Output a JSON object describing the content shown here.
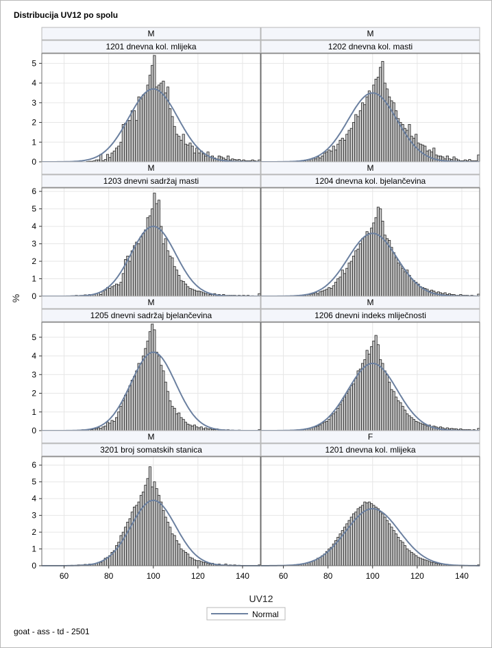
{
  "title": "Distribucija UV12 po spolu",
  "footnote": "goat - ass - td - 2501",
  "legend": {
    "label": "Normal",
    "placement": "bottom-center"
  },
  "chart_data": {
    "type": "bar",
    "subtype": "histogram-panel-grid",
    "xlabel": "UV12",
    "ylabel": "%",
    "xlim": [
      50,
      148
    ],
    "xticks": [
      60,
      80,
      100,
      120,
      140
    ],
    "bin_width": 1,
    "grid": true,
    "curve_color": "#6b80a0",
    "bar_fill": "#c8c8c8",
    "bar_edge": "#202020",
    "rows": [
      {
        "ylim": [
          0,
          5.5
        ],
        "yticks": [
          0,
          1,
          2,
          3,
          4,
          5
        ]
      },
      {
        "ylim": [
          0,
          6.2
        ],
        "yticks": [
          0,
          1,
          2,
          3,
          4,
          5,
          6
        ]
      },
      {
        "ylim": [
          0,
          5.8
        ],
        "yticks": [
          0,
          1,
          2,
          3,
          4,
          5
        ]
      },
      {
        "ylim": [
          0,
          6.5
        ],
        "yticks": [
          0,
          1,
          2,
          3,
          4,
          5,
          6
        ]
      }
    ],
    "panels": [
      {
        "sex": "M",
        "trait": "1201 dnevna kol. mlijeka",
        "normal_peak": 3.7,
        "normal_sd": 11,
        "hist_peak": 5.4,
        "bins": {
          "start": 70,
          "end": 147,
          "values": [
            0.02,
            0.03,
            0.03,
            0.05,
            0.1,
            0.1,
            0.38,
            0.05,
            0.12,
            0.38,
            0.22,
            0.45,
            0.55,
            0.7,
            0.8,
            1.0,
            1.9,
            1.95,
            2.1,
            2.1,
            2.6,
            2.6,
            2.1,
            3.3,
            3.2,
            3.4,
            3.5,
            3.9,
            4.4,
            4.9,
            5.4,
            3.8,
            3.9,
            4.0,
            4.1,
            3.5,
            3.8,
            2.7,
            2.3,
            1.8,
            1.4,
            1.3,
            1.1,
            1.4,
            0.9,
            0.85,
            0.95,
            0.8,
            0.45,
            0.7,
            0.45,
            0.55,
            0.4,
            0.3,
            0.5,
            0.25,
            0.3,
            0.2,
            0.15,
            0.3,
            0.25,
            0.2,
            0.12,
            0.3,
            0.1,
            0.15,
            0.12,
            0.1,
            0.12,
            0.05,
            0.1,
            0.05,
            0.05,
            0.05,
            0.1,
            0.05,
            0.03,
            0.1
          ]
        }
      },
      {
        "sex": "M",
        "trait": "1202 dnevna kol. masti",
        "normal_peak": 3.5,
        "normal_sd": 11,
        "hist_peak": 5.1,
        "bins": {
          "start": 62,
          "end": 147,
          "values": [
            0.02,
            0.03,
            0.02,
            0.03,
            0.05,
            0.05,
            0.05,
            0.05,
            0.1,
            0.12,
            0.15,
            0.2,
            0.15,
            0.25,
            0.2,
            0.3,
            0.45,
            0.5,
            0.6,
            0.55,
            0.8,
            0.6,
            0.9,
            1.1,
            1.2,
            1.1,
            1.4,
            1.6,
            1.7,
            2.0,
            2.4,
            2.3,
            2.6,
            3.0,
            2.9,
            3.3,
            3.6,
            3.5,
            3.9,
            4.2,
            4.3,
            4.8,
            5.1,
            4.0,
            3.7,
            3.3,
            3.1,
            3.0,
            2.6,
            2.2,
            2.0,
            1.9,
            1.7,
            1.6,
            1.9,
            1.3,
            1.2,
            1.4,
            0.95,
            0.9,
            0.85,
            0.8,
            0.55,
            0.6,
            0.5,
            0.7,
            0.35,
            0.3,
            0.3,
            0.25,
            0.15,
            0.3,
            0.15,
            0.12,
            0.25,
            0.15,
            0.1,
            0.05,
            0.05,
            0.1,
            0.05,
            0.12,
            0.05,
            0.05,
            0.05,
            0.35
          ]
        }
      },
      {
        "sex": "M",
        "trait": "1203 dnevni sadržaj masti",
        "normal_peak": 4.0,
        "normal_sd": 10,
        "hist_peak": 5.9,
        "bins": {
          "start": 62,
          "end": 147,
          "values": [
            0.02,
            0.03,
            0.03,
            0.05,
            0.03,
            0.05,
            0.05,
            0.08,
            0.05,
            0.1,
            0.1,
            0.12,
            0.15,
            0.2,
            0.1,
            0.3,
            0.35,
            0.5,
            0.45,
            0.55,
            0.6,
            0.7,
            0.65,
            0.8,
            1.3,
            2.1,
            2.3,
            2.0,
            2.6,
            2.9,
            3.1,
            3.0,
            3.4,
            3.6,
            3.8,
            4.5,
            4.6,
            5.0,
            5.9,
            5.3,
            5.5,
            4.0,
            3.0,
            3.3,
            2.6,
            2.3,
            2.2,
            1.7,
            1.5,
            1.2,
            0.9,
            0.85,
            0.7,
            0.55,
            0.45,
            0.4,
            0.35,
            0.3,
            0.3,
            0.25,
            0.2,
            0.15,
            0.2,
            0.1,
            0.1,
            0.15,
            0.05,
            0.1,
            0.05,
            0.1,
            0.05,
            0.05,
            0.05,
            0.05,
            0.05,
            0.03,
            0.05,
            0.03,
            0.05,
            0.03,
            0.05,
            0.02,
            0.03,
            0.02,
            0.02,
            0.15
          ]
        }
      },
      {
        "sex": "M",
        "trait": "1204 dnevna kol. bjelančevina",
        "normal_peak": 3.6,
        "normal_sd": 11,
        "hist_peak": 5.1,
        "bins": {
          "start": 62,
          "end": 147,
          "values": [
            0.02,
            0.03,
            0.02,
            0.03,
            0.05,
            0.05,
            0.05,
            0.05,
            0.1,
            0.1,
            0.12,
            0.15,
            0.2,
            0.15,
            0.25,
            0.3,
            0.35,
            0.4,
            0.5,
            0.45,
            0.6,
            0.8,
            1.0,
            1.1,
            1.5,
            1.3,
            1.6,
            1.9,
            2.0,
            2.3,
            2.6,
            2.7,
            3.0,
            3.3,
            3.4,
            3.7,
            3.6,
            3.9,
            4.2,
            4.5,
            5.1,
            5.0,
            4.3,
            3.5,
            3.3,
            3.2,
            2.8,
            2.5,
            2.2,
            1.9,
            1.8,
            1.6,
            1.4,
            1.5,
            1.2,
            1.0,
            0.9,
            0.8,
            0.7,
            0.55,
            0.5,
            0.45,
            0.4,
            0.3,
            0.35,
            0.3,
            0.2,
            0.25,
            0.2,
            0.15,
            0.2,
            0.1,
            0.15,
            0.1,
            0.1,
            0.05,
            0.05,
            0.1,
            0.05,
            0.05,
            0.05,
            0.03,
            0.05,
            0.03,
            0.02,
            0.12
          ]
        }
      },
      {
        "sex": "M",
        "trait": "1205 dnevni sadržaj bjelančevina",
        "normal_peak": 4.2,
        "normal_sd": 10,
        "hist_peak": 5.7,
        "bins": {
          "start": 65,
          "end": 147,
          "values": [
            0.02,
            0.03,
            0.02,
            0.05,
            0.03,
            0.05,
            0.08,
            0.05,
            0.1,
            0.1,
            0.15,
            0.12,
            0.2,
            0.25,
            0.45,
            0.4,
            0.55,
            0.5,
            0.7,
            1.0,
            1.3,
            1.6,
            1.9,
            2.1,
            2.4,
            2.7,
            2.9,
            3.2,
            3.6,
            3.6,
            4.0,
            4.4,
            4.8,
            5.3,
            5.7,
            5.4,
            4.2,
            4.0,
            3.5,
            3.2,
            2.6,
            2.1,
            1.6,
            1.3,
            1.2,
            0.9,
            0.95,
            0.7,
            0.6,
            0.45,
            0.35,
            0.3,
            0.25,
            0.3,
            0.2,
            0.15,
            0.2,
            0.1,
            0.15,
            0.1,
            0.1,
            0.05,
            0.05,
            0.1,
            0.05,
            0.03,
            0.05,
            0.03,
            0.05,
            0.02,
            0.03,
            0.02,
            0.02,
            0.03,
            0.02,
            0.02,
            0.02,
            0.02,
            0.02,
            0.02,
            0.02,
            0.02,
            0.05
          ]
        }
      },
      {
        "sex": "M",
        "trait": "1206 dnevni indeks mliječnosti",
        "normal_peak": 3.6,
        "normal_sd": 11,
        "hist_peak": 5.1,
        "bins": {
          "start": 62,
          "end": 147,
          "values": [
            0.02,
            0.03,
            0.02,
            0.03,
            0.05,
            0.05,
            0.05,
            0.08,
            0.1,
            0.12,
            0.15,
            0.2,
            0.2,
            0.25,
            0.3,
            0.4,
            0.45,
            0.5,
            0.6,
            0.8,
            0.9,
            1.0,
            1.2,
            1.4,
            1.6,
            1.8,
            2.0,
            2.2,
            2.4,
            2.5,
            2.8,
            3.2,
            3.3,
            3.6,
            3.8,
            4.3,
            4.1,
            4.5,
            4.8,
            5.1,
            4.6,
            3.8,
            3.6,
            3.2,
            3.0,
            2.6,
            2.2,
            2.1,
            1.8,
            1.6,
            1.5,
            1.3,
            1.1,
            0.9,
            0.8,
            0.7,
            0.6,
            0.5,
            0.45,
            0.4,
            0.35,
            0.3,
            0.25,
            0.3,
            0.2,
            0.25,
            0.2,
            0.15,
            0.2,
            0.15,
            0.1,
            0.15,
            0.1,
            0.12,
            0.1,
            0.1,
            0.05,
            0.1,
            0.05,
            0.05,
            0.05,
            0.05,
            0.03,
            0.05,
            0.02,
            0.12
          ]
        }
      },
      {
        "sex": "M",
        "trait": "3201 broj somatskih stanica",
        "normal_peak": 3.9,
        "normal_sd": 10,
        "hist_peak": 5.9,
        "bins": {
          "start": 62,
          "end": 147,
          "values": [
            0.02,
            0.03,
            0.02,
            0.03,
            0.05,
            0.05,
            0.05,
            0.08,
            0.05,
            0.1,
            0.1,
            0.12,
            0.15,
            0.2,
            0.2,
            0.3,
            0.45,
            0.5,
            0.6,
            0.8,
            0.9,
            1.2,
            1.4,
            1.8,
            2.0,
            2.3,
            2.6,
            2.8,
            3.2,
            3.5,
            3.6,
            3.8,
            4.2,
            4.4,
            4.8,
            5.2,
            5.9,
            4.7,
            5.0,
            4.6,
            4.2,
            3.8,
            3.3,
            2.9,
            2.6,
            2.3,
            1.9,
            1.8,
            1.5,
            1.3,
            1.0,
            0.9,
            0.8,
            0.7,
            0.5,
            0.45,
            0.35,
            0.3,
            0.3,
            0.25,
            0.2,
            0.2,
            0.15,
            0.1,
            0.15,
            0.1,
            0.05,
            0.1,
            0.05,
            0.05,
            0.1,
            0.03,
            0.05,
            0.03,
            0.05,
            0.02,
            0.03,
            0.02,
            0.02,
            0.02,
            0.02,
            0.02,
            0.02,
            0.02,
            0.02,
            0.05
          ]
        }
      },
      {
        "sex": "F",
        "trait": "1201 dnevna kol. mlijeka",
        "normal_peak": 3.4,
        "normal_sd": 12,
        "hist_peak": 3.8,
        "bins": {
          "start": 62,
          "end": 147,
          "values": [
            0.02,
            0.03,
            0.03,
            0.05,
            0.05,
            0.08,
            0.1,
            0.12,
            0.15,
            0.2,
            0.25,
            0.3,
            0.35,
            0.45,
            0.5,
            0.6,
            0.7,
            0.85,
            1.0,
            1.1,
            1.3,
            1.5,
            1.7,
            1.9,
            2.1,
            2.3,
            2.5,
            2.7,
            2.9,
            3.1,
            3.2,
            3.4,
            3.5,
            3.6,
            3.8,
            3.75,
            3.8,
            3.7,
            3.6,
            3.5,
            3.4,
            3.2,
            3.1,
            2.9,
            2.7,
            2.5,
            2.3,
            2.1,
            1.9,
            1.7,
            1.5,
            1.4,
            1.2,
            1.0,
            0.9,
            0.8,
            0.7,
            0.6,
            0.5,
            0.45,
            0.4,
            0.35,
            0.3,
            0.25,
            0.2,
            0.2,
            0.15,
            0.12,
            0.1,
            0.1,
            0.08,
            0.06,
            0.05,
            0.05,
            0.04,
            0.04,
            0.03,
            0.03,
            0.03,
            0.02,
            0.02,
            0.02,
            0.02,
            0.02,
            0.02,
            0.05
          ]
        }
      }
    ]
  }
}
